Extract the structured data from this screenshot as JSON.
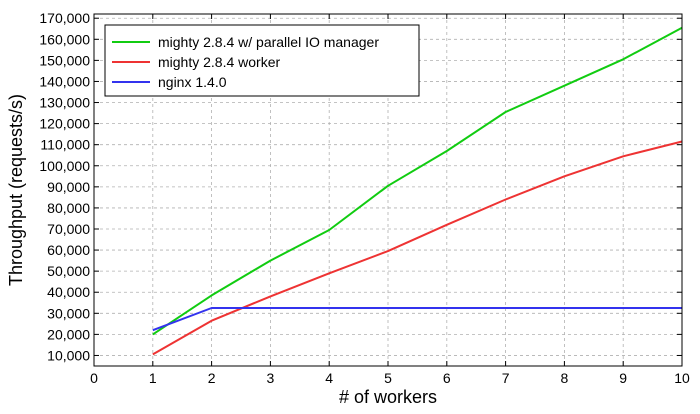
{
  "chart_data": {
    "type": "line",
    "xlabel": "# of workers",
    "ylabel": "Throughput (requests/s)",
    "xlim": [
      0,
      10
    ],
    "ylim": [
      5000,
      172000
    ],
    "xticks": [
      "0",
      "1",
      "2",
      "3",
      "4",
      "5",
      "6",
      "7",
      "8",
      "9",
      "10"
    ],
    "yticks": [
      "10,000",
      "20,000",
      "30,000",
      "40,000",
      "50,000",
      "60,000",
      "70,000",
      "80,000",
      "90,000",
      "100,000",
      "110,000",
      "120,000",
      "130,000",
      "140,000",
      "150,000",
      "160,000",
      "170,000"
    ],
    "grid": true,
    "legend_position": "top-left",
    "series": [
      {
        "name": "mighty 2.8.4 w/ parallel IO manager",
        "color": "#11cc11",
        "x": [
          1,
          2,
          3,
          4,
          5,
          6,
          7,
          8,
          9,
          10
        ],
        "y": [
          20000,
          38500,
          55000,
          69500,
          90500,
          107000,
          125500,
          138000,
          150500,
          165500
        ]
      },
      {
        "name": "mighty 2.8.4 worker",
        "color": "#ee3333",
        "x": [
          1,
          2,
          3,
          4,
          5,
          6,
          7,
          8,
          9,
          10
        ],
        "y": [
          10500,
          26500,
          38000,
          49000,
          59500,
          72000,
          84000,
          95000,
          104500,
          111500
        ]
      },
      {
        "name": "nginx 1.4.0",
        "color": "#3333ee",
        "x": [
          1,
          2,
          3,
          4,
          5,
          6,
          7,
          8,
          9,
          10
        ],
        "y": [
          22000,
          32500,
          32500,
          32500,
          32500,
          32500,
          32500,
          32500,
          32500,
          32500
        ]
      }
    ]
  }
}
